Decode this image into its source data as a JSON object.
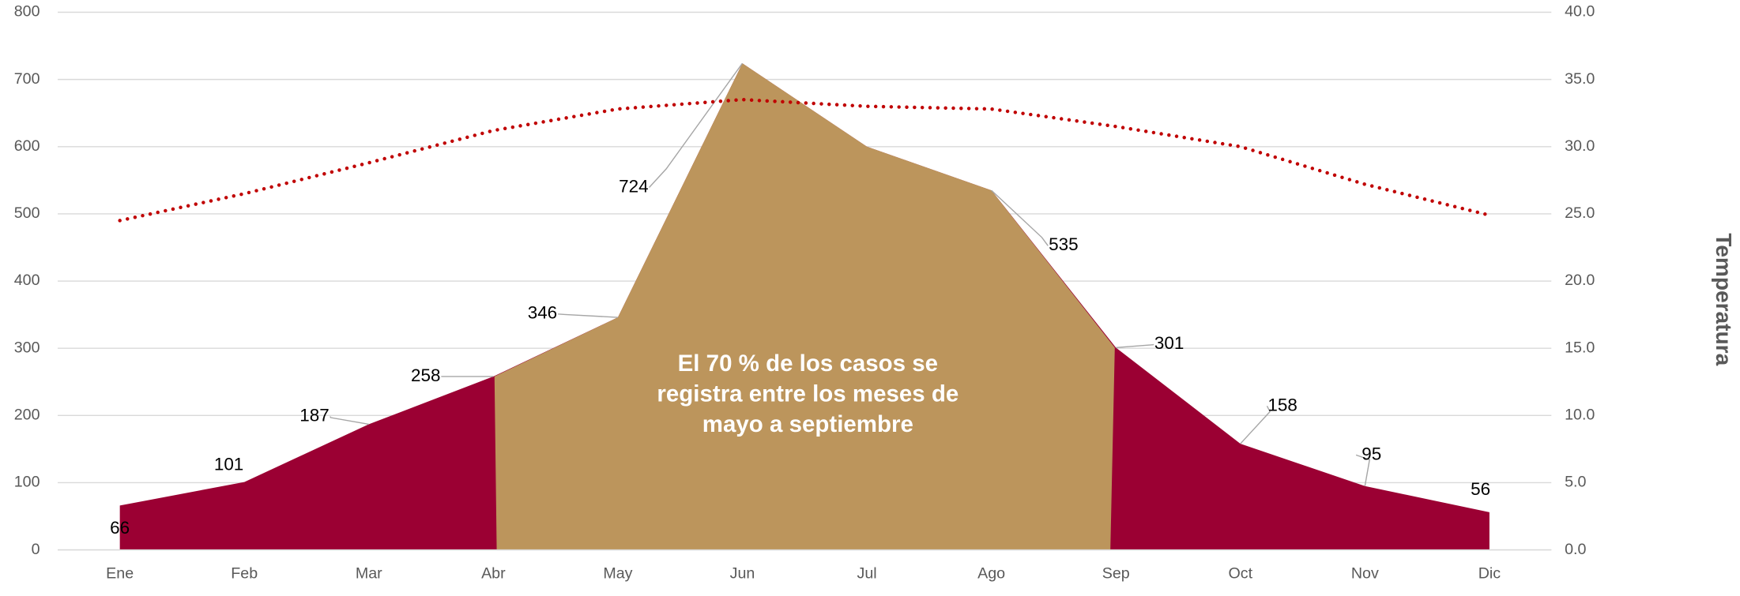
{
  "chart_data": {
    "type": "area",
    "categories": [
      "Ene",
      "Feb",
      "Mar",
      "Abr",
      "May",
      "Jun",
      "Jul",
      "Ago",
      "Sep",
      "Oct",
      "Nov",
      "Dic"
    ],
    "series": [
      {
        "color": "#9b0033",
        "highlight_color": "#bc955c",
        "highlight_range": [
          "Abr",
          "Sep"
        ],
        "values": [
          66,
          101,
          187,
          258,
          346,
          724,
          600,
          535,
          301,
          158,
          95,
          56
        ],
        "value_labels": [
          "66",
          "101",
          "187",
          "258",
          "346",
          "724",
          null,
          "535",
          "301",
          "158",
          "95",
          "56"
        ]
      },
      {
        "type": "line",
        "style": "dotted",
        "color": "#c00000",
        "axis": "y2",
        "values": [
          24.5,
          26.5,
          28.8,
          31.2,
          32.8,
          33.5,
          33.0,
          32.8,
          31.5,
          30.0,
          27.2,
          24.9
        ]
      }
    ],
    "ylim": [
      0,
      800
    ],
    "yticks": [
      0,
      100,
      200,
      300,
      400,
      500,
      600,
      700,
      800
    ],
    "y2lim": [
      0,
      40
    ],
    "y2ticks": [
      {
        "value": 0,
        "label": "0.0"
      },
      {
        "value": 5,
        "label": "5.0"
      },
      {
        "value": 10,
        "label": "10.0"
      },
      {
        "value": 15,
        "label": "15.0"
      },
      {
        "value": 20,
        "label": "20.0"
      },
      {
        "value": 25,
        "label": "25.0"
      },
      {
        "value": 30,
        "label": "30.0"
      },
      {
        "value": 35,
        "label": "35.0"
      },
      {
        "value": 40,
        "label": "40.0"
      }
    ],
    "y2_label": "Temperatura",
    "annotation": [
      "El 70 % de los casos se",
      "registra entre los meses de",
      "mayo a septiembre"
    ],
    "grid": true
  }
}
